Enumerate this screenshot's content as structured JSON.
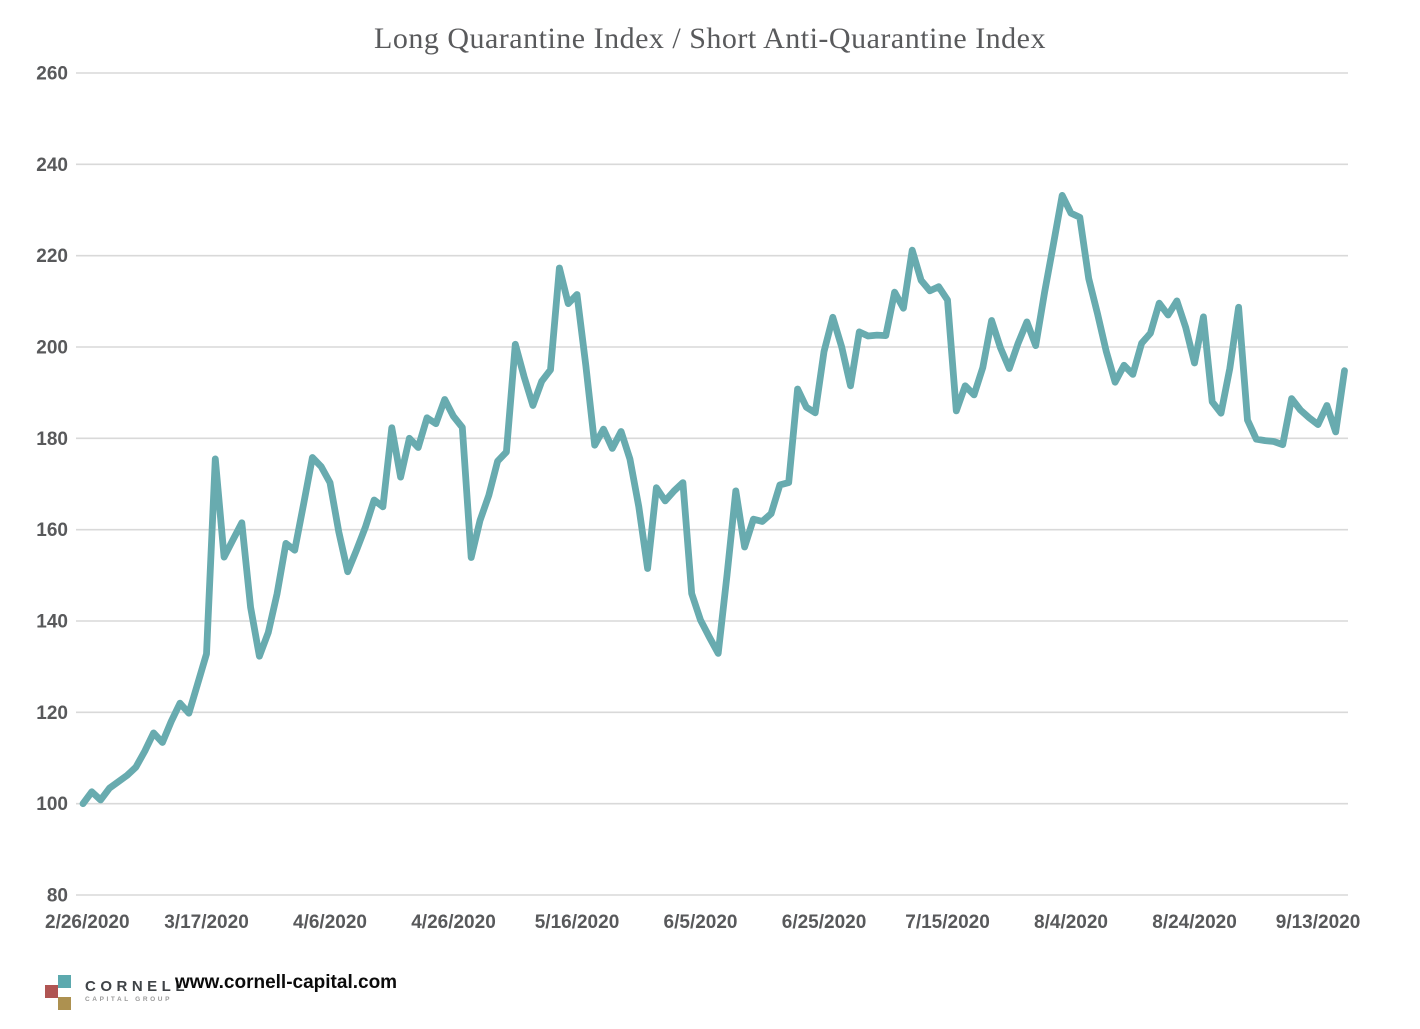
{
  "title": "Long Quarantine Index / Short Anti-Quarantine Index",
  "footer": {
    "logo_brand": "CORNELL",
    "logo_sub": "CAPITAL GROUP",
    "logo_colors": {
      "teal": "#5ca9ae",
      "red": "#b05553",
      "gold": "#ad9150"
    },
    "website": "www.cornell-capital.com"
  },
  "chart_data": {
    "type": "line",
    "title": "Long Quarantine Index / Short Anti-Quarantine Index",
    "xlabel": "",
    "ylabel": "",
    "ylim": [
      80,
      260
    ],
    "y_ticks": [
      80,
      100,
      120,
      140,
      160,
      180,
      200,
      220,
      240,
      260
    ],
    "grid": true,
    "legend": "none",
    "line_color": "#68abaf",
    "grid_color": "#d9d9d9",
    "tick_text_color": "#58595b",
    "x_tick_labels": [
      "2/26/2020",
      "3/17/2020",
      "4/6/2020",
      "4/26/2020",
      "5/16/2020",
      "6/5/2020",
      "6/25/2020",
      "7/15/2020",
      "8/4/2020",
      "8/24/2020",
      "9/13/2020"
    ],
    "x_tick_day_index": [
      0,
      14,
      28,
      42,
      56,
      70,
      84,
      98,
      112,
      126,
      140
    ],
    "series": [
      {
        "name": "Long Quarantine Index / Short Anti-Quarantine Index",
        "x_unit": "trading days since 2/26/2020, one value per day",
        "start_value": 100,
        "values": [
          100.0,
          102.6,
          100.8,
          103.4,
          104.8,
          106.2,
          108.0,
          111.5,
          115.5,
          113.4,
          118.0,
          122.0,
          119.8,
          126.3,
          132.8,
          175.5,
          154.0,
          157.8,
          161.5,
          143.0,
          132.3,
          137.5,
          146.0,
          157.0,
          155.5,
          165.5,
          175.8,
          173.8,
          170.3,
          159.5,
          150.8,
          155.5,
          160.5,
          166.5,
          165.0,
          182.3,
          171.5,
          180.0,
          178.0,
          184.5,
          183.2,
          188.5,
          184.8,
          182.4,
          153.9,
          162.0,
          167.5,
          175.0,
          177.0,
          200.6,
          193.5,
          187.2,
          192.5,
          195.0,
          217.3,
          209.5,
          211.5,
          196.0,
          178.5,
          182.0,
          177.8,
          181.5,
          175.5,
          165.0,
          151.5,
          169.2,
          166.3,
          168.5,
          170.3,
          146.0,
          140.2,
          136.5,
          132.9,
          150.0,
          168.5,
          156.2,
          162.3,
          161.8,
          163.5,
          169.8,
          170.3,
          190.8,
          186.8,
          185.6,
          199.0,
          206.5,
          200.0,
          191.5,
          203.3,
          202.4,
          202.6,
          202.5,
          212.0,
          208.5,
          221.2,
          214.6,
          212.3,
          213.2,
          210.3,
          186.0,
          191.5,
          189.5,
          195.5,
          205.8,
          199.8,
          195.3,
          200.8,
          205.5,
          200.3,
          212.0,
          222.5,
          233.2,
          229.3,
          228.4,
          215.0,
          207.3,
          199.0,
          192.3,
          196.0,
          194.0,
          200.8,
          203.0,
          209.6,
          207.0,
          210.1,
          204.3,
          196.5,
          206.6,
          188.0,
          185.5,
          195.3,
          208.7,
          184.0,
          179.8,
          179.5,
          179.3,
          178.6,
          188.7,
          186.2,
          184.5,
          183.0,
          187.2,
          181.4,
          194.8
        ]
      }
    ]
  }
}
